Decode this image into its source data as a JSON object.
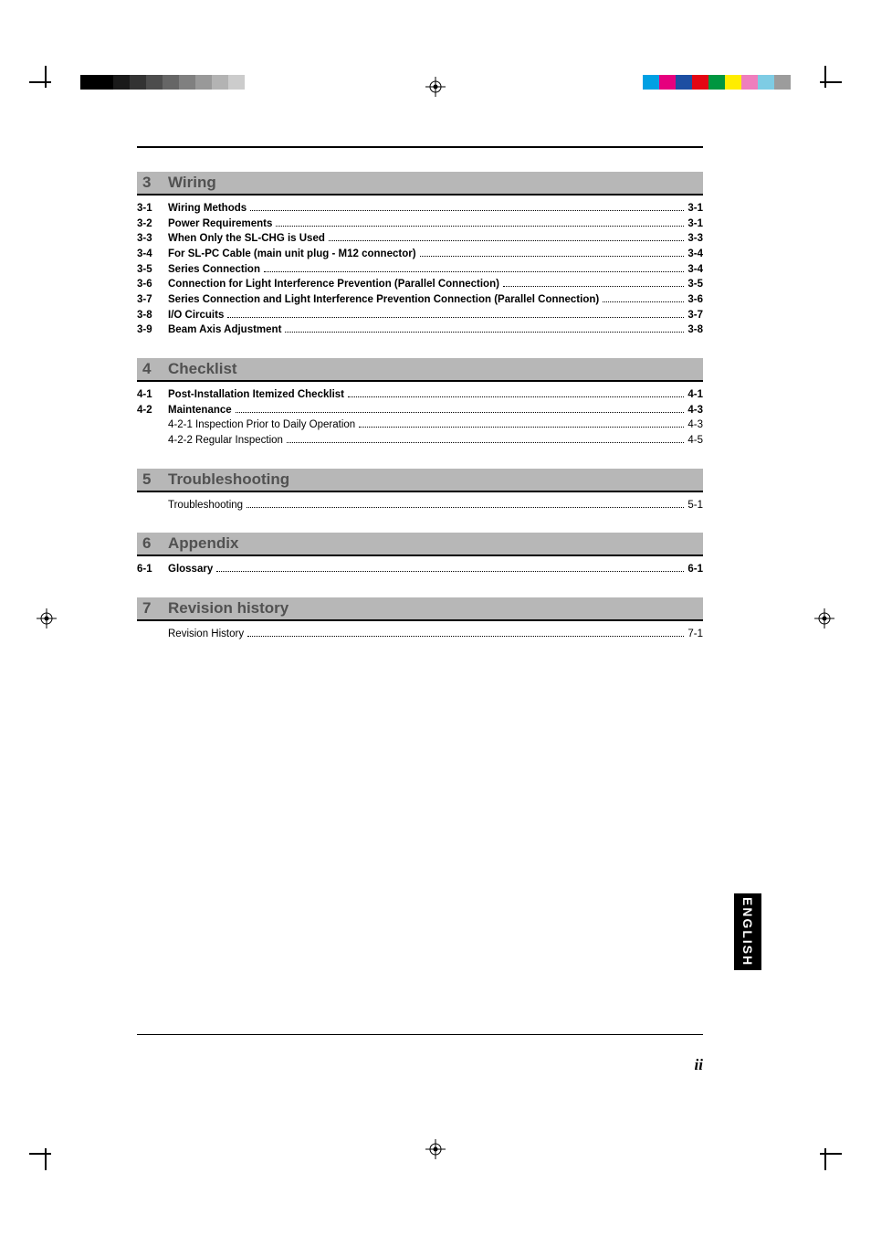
{
  "page_number_label": "ii",
  "language_tab": "ENGLISH",
  "print_marks": {
    "grayscale_bar": [
      "#000000",
      "#000000",
      "#1a1a1a",
      "#333333",
      "#4d4d4d",
      "#666666",
      "#808080",
      "#999999",
      "#b3b3b3",
      "#cccccc"
    ],
    "color_bar": [
      "#00a0e3",
      "#e6007e",
      "#1d4ea2",
      "#e30613",
      "#009640",
      "#ffed00",
      "#ef7ebd",
      "#7ecce4",
      "#9c9c9c"
    ]
  },
  "sections": [
    {
      "num": "3",
      "title": "Wiring",
      "entries": [
        {
          "num": "3-1",
          "text": "Wiring Methods",
          "page": "3-1",
          "bold": true
        },
        {
          "num": "3-2",
          "text": "Power Requirements",
          "page": "3-1",
          "bold": true
        },
        {
          "num": "3-3",
          "text": "When Only the SL-CHG is Used",
          "page": "3-3",
          "bold": true
        },
        {
          "num": "3-4",
          "text": "For SL-PC Cable (main unit plug - M12 connector)",
          "page": "3-4",
          "bold": true
        },
        {
          "num": "3-5",
          "text": "Series Connection",
          "page": "3-4",
          "bold": true
        },
        {
          "num": "3-6",
          "text": "Connection for Light Interference Prevention (Parallel Connection)",
          "page": "3-5",
          "bold": true
        },
        {
          "num": "3-7",
          "text": "Series Connection and Light Interference Prevention Connection (Parallel Connection)",
          "page": "3-6",
          "bold": true
        },
        {
          "num": "3-8",
          "text": "I/O Circuits",
          "page": "3-7",
          "bold": true
        },
        {
          "num": "3-9",
          "text": "Beam Axis Adjustment",
          "page": "3-8",
          "bold": true
        }
      ]
    },
    {
      "num": "4",
      "title": "Checklist",
      "entries": [
        {
          "num": "4-1",
          "text": "Post-Installation Itemized Checklist",
          "page": "4-1",
          "bold": true
        },
        {
          "num": "4-2",
          "text": "Maintenance",
          "page": "4-3",
          "bold": true
        },
        {
          "num": "",
          "text": "4-2-1 Inspection Prior to Daily Operation",
          "page": "4-3",
          "bold": false,
          "indent": 2
        },
        {
          "num": "",
          "text": "4-2-2 Regular Inspection",
          "page": "4-5",
          "bold": false,
          "indent": 2
        }
      ]
    },
    {
      "num": "5",
      "title": "Troubleshooting",
      "entries": [
        {
          "num": "",
          "text": "Troubleshooting",
          "page": "5-1",
          "bold": false,
          "indent": 2
        }
      ]
    },
    {
      "num": "6",
      "title": "Appendix",
      "entries": [
        {
          "num": "6-1",
          "text": "Glossary",
          "page": "6-1",
          "bold": true
        }
      ]
    },
    {
      "num": "7",
      "title": "Revision history",
      "entries": [
        {
          "num": "",
          "text": "Revision History",
          "page": "7-1",
          "bold": false,
          "indent": 2
        }
      ]
    }
  ]
}
